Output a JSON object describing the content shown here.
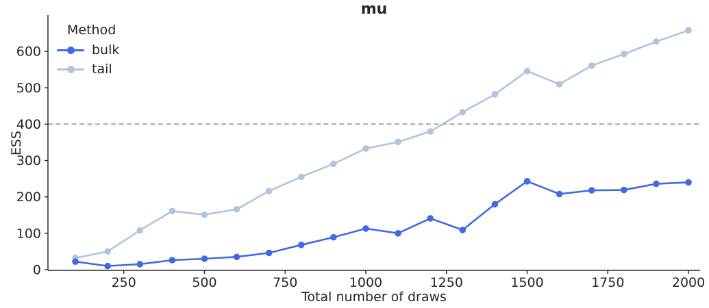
{
  "chart_data": {
    "type": "line",
    "title": "mu",
    "xlabel": "Total number of draws",
    "ylabel": "ESS",
    "x": [
      100,
      200,
      300,
      400,
      500,
      600,
      700,
      800,
      900,
      1000,
      1100,
      1200,
      1300,
      1400,
      1500,
      1600,
      1700,
      1800,
      1900,
      2000
    ],
    "series": [
      {
        "name": "bulk",
        "color": "#4169e1",
        "values": [
          22,
          10,
          15,
          26,
          30,
          35,
          46,
          68,
          89,
          113,
          100,
          141,
          109,
          180,
          243,
          208,
          218,
          219,
          236,
          240
        ]
      },
      {
        "name": "tail",
        "color": "#b0c4de",
        "values": [
          32,
          50,
          108,
          161,
          151,
          166,
          216,
          255,
          291,
          333,
          351,
          380,
          433,
          482,
          546,
          510,
          561,
          593,
          627,
          658
        ]
      }
    ],
    "reference_line": {
      "y": 400,
      "color": "#a0a0a0",
      "style": "dashed"
    },
    "x_ticks": [
      250,
      500,
      750,
      1000,
      1250,
      1500,
      1750,
      2000
    ],
    "y_ticks": [
      0,
      100,
      200,
      300,
      400,
      500,
      600
    ],
    "xlim": [
      15,
      2036
    ],
    "ylim": [
      -2,
      700
    ],
    "grid": false,
    "legend": {
      "title": "Method",
      "position": "upper-left"
    },
    "colors": {
      "axis": "#2b2b2b",
      "text": "#262626"
    }
  }
}
